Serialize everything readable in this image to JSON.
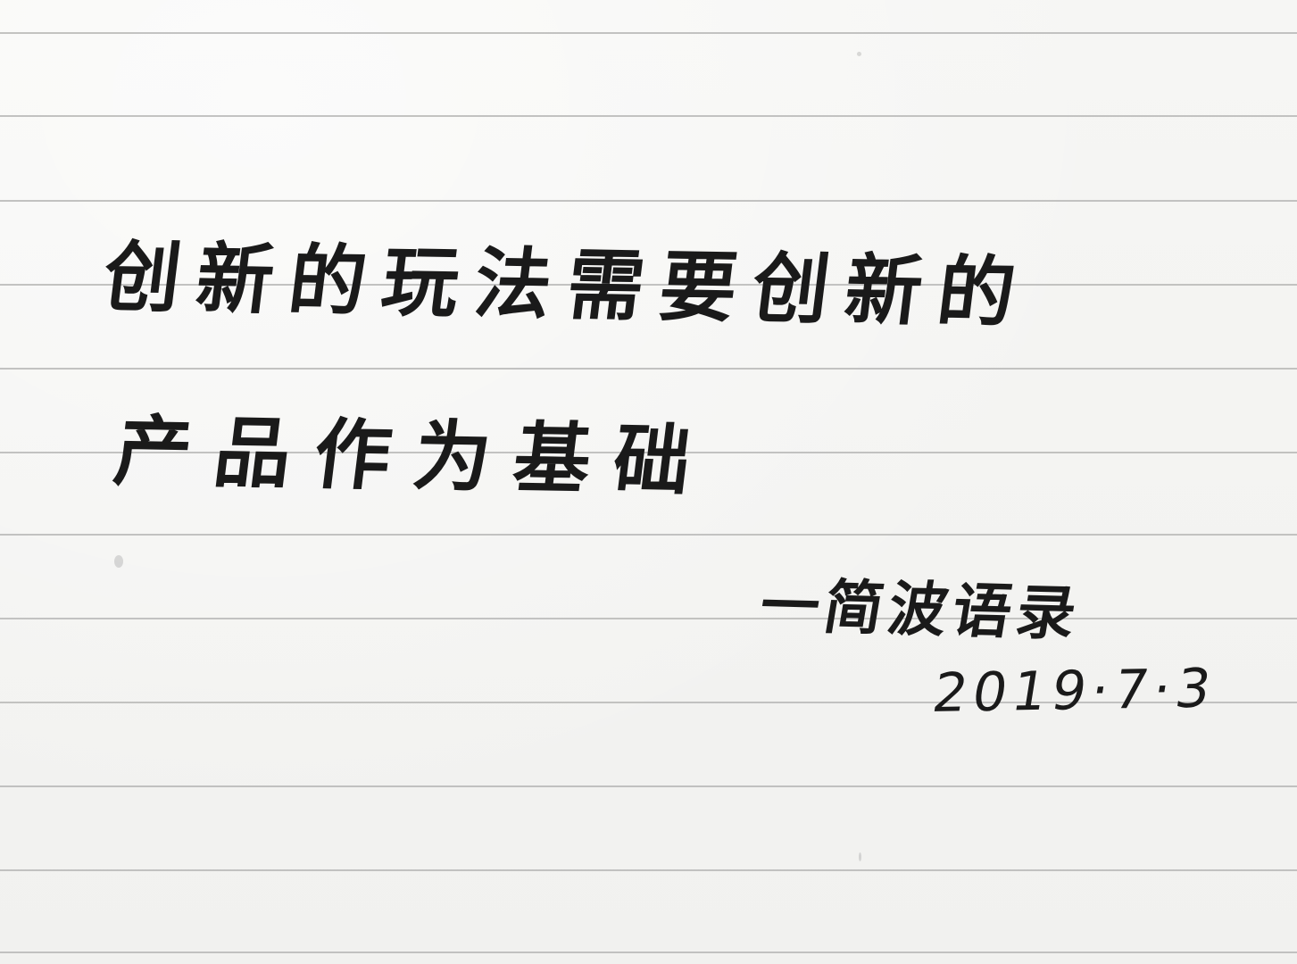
{
  "note": {
    "line1": "创新的玩法需要创新的",
    "line2": "产品作为基础",
    "signature": "一简波语录",
    "date": "2019·7·3"
  },
  "colors": {
    "paper": "#f4f4f2",
    "ruling": "#b9b9b7",
    "ink": "#1a1a1a"
  }
}
